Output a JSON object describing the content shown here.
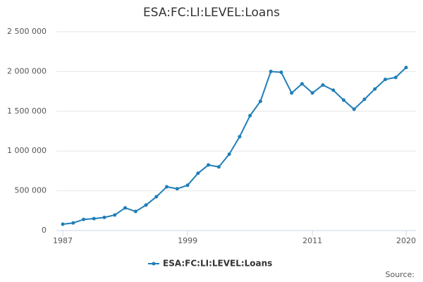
{
  "chart_data": {
    "type": "line",
    "title": "ESA:FC:LI:LEVEL:Loans",
    "x": [
      1987,
      1988,
      1989,
      1990,
      1991,
      1992,
      1993,
      1994,
      1995,
      1996,
      1997,
      1998,
      1999,
      2000,
      2001,
      2002,
      2003,
      2004,
      2005,
      2006,
      2007,
      2008,
      2009,
      2010,
      2011,
      2012,
      2013,
      2014,
      2015,
      2016,
      2017,
      2018,
      2019,
      2020
    ],
    "series": [
      {
        "name": "ESA:FC:LI:LEVEL:Loans",
        "color": "#1f7eb8",
        "values": [
          80000,
          95000,
          140000,
          150000,
          165000,
          195000,
          285000,
          240000,
          320000,
          425000,
          550000,
          525000,
          570000,
          720000,
          825000,
          800000,
          960000,
          1180000,
          1445000,
          1625000,
          2000000,
          1990000,
          1730000,
          1845000,
          1730000,
          1830000,
          1765000,
          1640000,
          1525000,
          1650000,
          1780000,
          1900000,
          1925000,
          2050000
        ]
      }
    ],
    "xlim": [
      1987,
      2020
    ],
    "xticks": [
      1987,
      1999,
      2011,
      2020
    ],
    "ylim": [
      0,
      2500000
    ],
    "yticks": [
      0,
      {
        "value": 500000,
        "label": "500 000"
      },
      {
        "value": 1000000,
        "label": "1 000 000"
      },
      {
        "value": 1500000,
        "label": "1 500 000"
      },
      {
        "value": 2000000,
        "label": "2 000 000"
      },
      {
        "value": 2500000,
        "label": "2 500 000"
      }
    ],
    "grid": true,
    "legend": "bottom",
    "source_label": "Source:"
  }
}
